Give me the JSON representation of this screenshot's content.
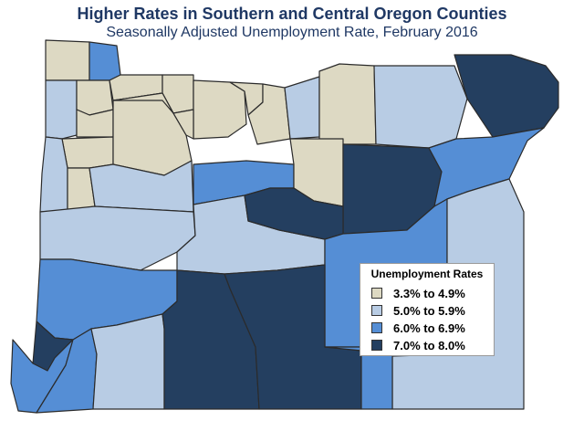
{
  "title": "Higher Rates in Southern and Central Oregon Counties",
  "subtitle": "Seasonally Adjusted Unemployment Rate, February 2016",
  "colors": {
    "c1": "#ddd9c3",
    "c2": "#b8cce4",
    "c3": "#558ed5",
    "c4": "#243f60"
  },
  "legend": {
    "title": "Unemployment Rates",
    "items": [
      {
        "label": "3.3% to 4.9%",
        "color": "c1"
      },
      {
        "label": "5.0% to 5.9%",
        "color": "c2"
      },
      {
        "label": "6.0% to 6.9%",
        "color": "c3"
      },
      {
        "label": "7.0% to 8.0%",
        "color": "c4"
      }
    ]
  },
  "counties": [
    {
      "id": "clatsop",
      "class": "c1"
    },
    {
      "id": "columbia",
      "class": "c3"
    },
    {
      "id": "tillamook",
      "class": "c2"
    },
    {
      "id": "washington",
      "class": "c1"
    },
    {
      "id": "multnomah",
      "class": "c1"
    },
    {
      "id": "hood-river",
      "class": "c1"
    },
    {
      "id": "wasco",
      "class": "c1"
    },
    {
      "id": "sherman",
      "class": "c1"
    },
    {
      "id": "gilliam",
      "class": "c1"
    },
    {
      "id": "morrow",
      "class": "c2"
    },
    {
      "id": "umatilla",
      "class": "c1"
    },
    {
      "id": "union",
      "class": "c2"
    },
    {
      "id": "wallowa",
      "class": "c4"
    },
    {
      "id": "yamhill",
      "class": "c1"
    },
    {
      "id": "polk",
      "class": "c1"
    },
    {
      "id": "marion",
      "class": "c1"
    },
    {
      "id": "clackamas",
      "class": "c1"
    },
    {
      "id": "lincoln",
      "class": "c2"
    },
    {
      "id": "benton",
      "class": "c1"
    },
    {
      "id": "linn",
      "class": "c2"
    },
    {
      "id": "jefferson",
      "class": "c3"
    },
    {
      "id": "wheeler",
      "class": "c1"
    },
    {
      "id": "grant",
      "class": "c4"
    },
    {
      "id": "baker",
      "class": "c3"
    },
    {
      "id": "lane",
      "class": "c2"
    },
    {
      "id": "deschutes",
      "class": "c2"
    },
    {
      "id": "crook",
      "class": "c4"
    },
    {
      "id": "harney",
      "class": "c3"
    },
    {
      "id": "malheur",
      "class": "c2"
    },
    {
      "id": "douglas",
      "class": "c3"
    },
    {
      "id": "coos",
      "class": "c4"
    },
    {
      "id": "curry",
      "class": "c3"
    },
    {
      "id": "josephine",
      "class": "c3"
    },
    {
      "id": "jackson",
      "class": "c2"
    },
    {
      "id": "klamath",
      "class": "c4"
    },
    {
      "id": "lake",
      "class": "c4"
    },
    {
      "id": "harney-south",
      "class": "c3"
    }
  ]
}
